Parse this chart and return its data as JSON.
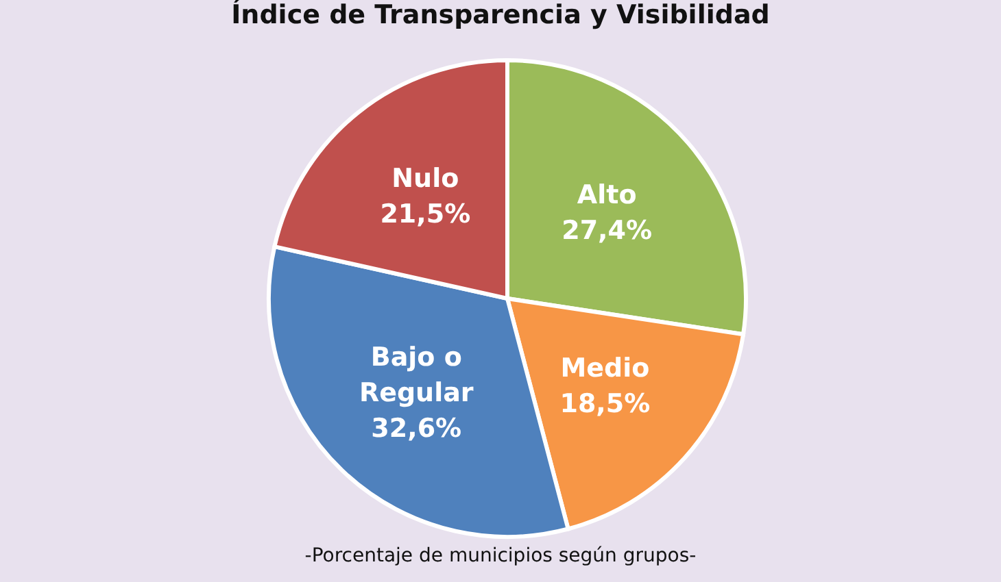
{
  "chart_data": {
    "type": "pie",
    "title": "Índice de Transparencia y Visibilidad",
    "annotations": [
      "-Porcentaje de municipios según grupos-"
    ],
    "categories": [
      "Alto",
      "Medio",
      "Bajo o Regular",
      "Nulo"
    ],
    "values": [
      27.4,
      18.5,
      32.6,
      21.5
    ],
    "colors": [
      "#9bbb59",
      "#f79646",
      "#4f81bd",
      "#c0504d"
    ],
    "value_labels": [
      "27,4%",
      "18,5%",
      "32,6%",
      "21,5%"
    ],
    "legend": false
  }
}
